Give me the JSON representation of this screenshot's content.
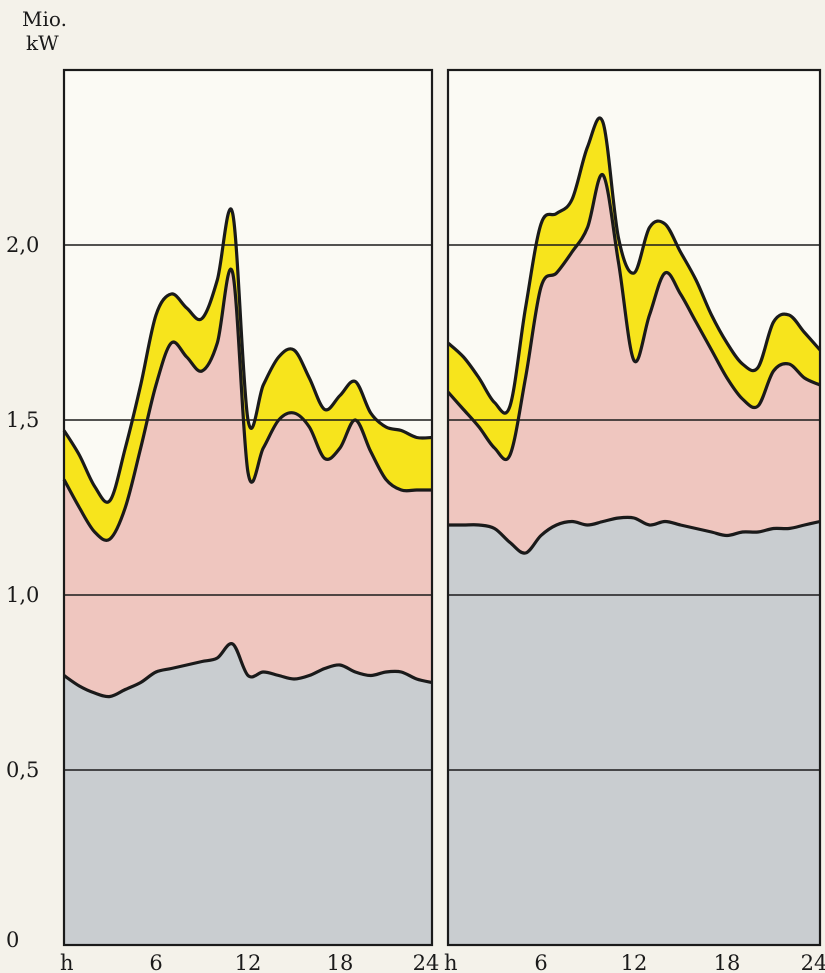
{
  "unit_label": [
    "Mio.",
    "kW"
  ],
  "colors": {
    "base": "#c9cdd0",
    "middle": "#efc6bf",
    "peak": "#f7e41c",
    "outline": "#1a1a1a",
    "grid": "#1a1a1a"
  },
  "chart_data": [
    {
      "type": "area",
      "title": "",
      "xlabel": "h",
      "ylabel": "Mio. kW",
      "xlim": [
        0,
        24
      ],
      "ylim": [
        0,
        2.5
      ],
      "yticks": [
        "0",
        "0,5",
        "1,0",
        "1,5",
        "2,0"
      ],
      "xticks": [
        "h",
        "6",
        "12",
        "18",
        "24"
      ],
      "grid": true,
      "x": [
        0,
        1,
        2,
        3,
        4,
        5,
        6,
        7,
        8,
        9,
        10,
        11,
        12,
        13,
        14,
        15,
        16,
        17,
        18,
        19,
        20,
        21,
        22,
        23,
        24
      ],
      "boundaries": [
        {
          "values": [
            0.77,
            0.74,
            0.72,
            0.71,
            0.73,
            0.75,
            0.78,
            0.79,
            0.8,
            0.81,
            0.82,
            0.86,
            0.77,
            0.78,
            0.77,
            0.76,
            0.77,
            0.79,
            0.8,
            0.78,
            0.77,
            0.78,
            0.78,
            0.76,
            0.75
          ]
        },
        {
          "values": [
            1.33,
            1.25,
            1.18,
            1.16,
            1.25,
            1.42,
            1.6,
            1.72,
            1.68,
            1.64,
            1.72,
            1.92,
            1.35,
            1.42,
            1.5,
            1.52,
            1.48,
            1.39,
            1.42,
            1.5,
            1.41,
            1.33,
            1.3,
            1.3,
            1.3
          ]
        },
        {
          "values": [
            1.47,
            1.4,
            1.31,
            1.27,
            1.42,
            1.6,
            1.8,
            1.86,
            1.82,
            1.79,
            1.9,
            2.09,
            1.5,
            1.6,
            1.68,
            1.7,
            1.62,
            1.53,
            1.57,
            1.61,
            1.52,
            1.48,
            1.47,
            1.45,
            1.45
          ]
        }
      ]
    },
    {
      "type": "area",
      "title": "",
      "xlabel": "h",
      "ylabel": "Mio. kW",
      "xlim": [
        0,
        24
      ],
      "ylim": [
        0,
        2.5
      ],
      "yticks": [],
      "xticks": [
        "h",
        "6",
        "12",
        "18",
        "24"
      ],
      "grid": true,
      "x": [
        0,
        1,
        2,
        3,
        4,
        5,
        6,
        7,
        8,
        9,
        10,
        11,
        12,
        13,
        14,
        15,
        16,
        17,
        18,
        19,
        20,
        21,
        22,
        23,
        24
      ],
      "boundaries": [
        {
          "values": [
            1.2,
            1.2,
            1.2,
            1.19,
            1.15,
            1.12,
            1.17,
            1.2,
            1.21,
            1.2,
            1.21,
            1.22,
            1.22,
            1.2,
            1.21,
            1.2,
            1.19,
            1.18,
            1.17,
            1.18,
            1.18,
            1.19,
            1.19,
            1.2,
            1.21
          ]
        },
        {
          "values": [
            1.58,
            1.53,
            1.48,
            1.42,
            1.4,
            1.62,
            1.88,
            1.92,
            1.98,
            2.05,
            2.2,
            1.95,
            1.67,
            1.8,
            1.92,
            1.86,
            1.78,
            1.7,
            1.62,
            1.56,
            1.54,
            1.64,
            1.66,
            1.62,
            1.6
          ]
        },
        {
          "values": [
            1.72,
            1.68,
            1.62,
            1.55,
            1.54,
            1.82,
            2.06,
            2.09,
            2.13,
            2.28,
            2.35,
            2.02,
            1.92,
            2.05,
            2.06,
            1.98,
            1.9,
            1.8,
            1.72,
            1.66,
            1.65,
            1.78,
            1.8,
            1.75,
            1.7
          ]
        }
      ]
    }
  ]
}
